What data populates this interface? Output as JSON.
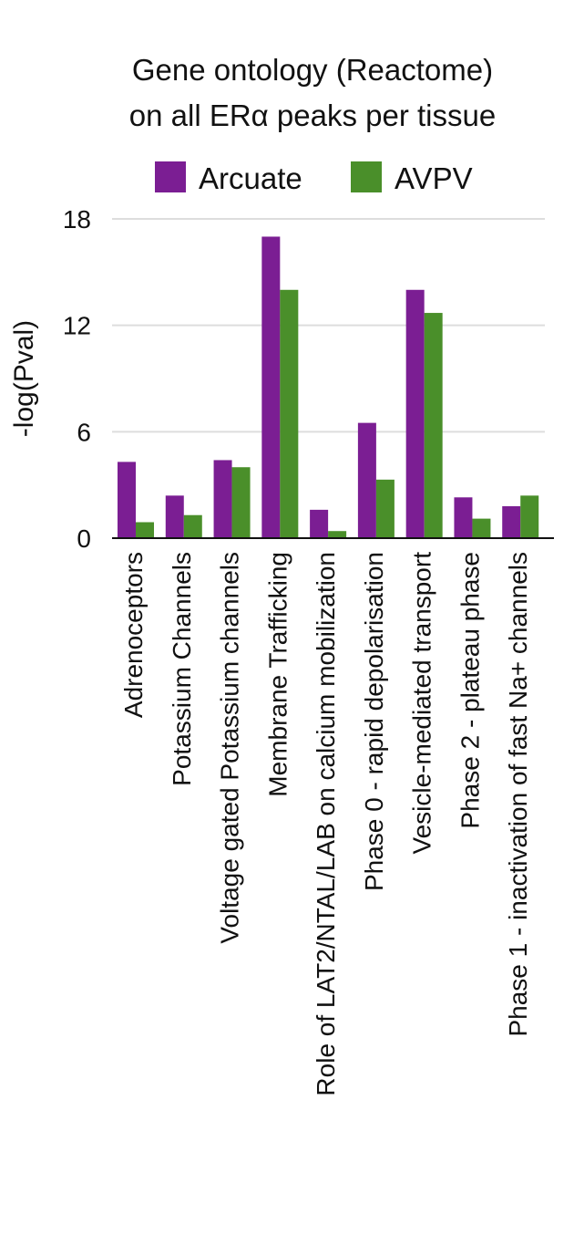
{
  "chart_data": {
    "type": "bar",
    "title_lines": [
      "Gene ontology (Reactome)",
      "on all ERα peaks per tissue"
    ],
    "xlabel": "",
    "ylabel": "-log(Pval)",
    "ylim": [
      0,
      18
    ],
    "yticks": [
      0,
      6,
      12,
      18
    ],
    "grid": true,
    "legend_position": "top",
    "categories": [
      "Adrenoceptors",
      "Potassium Channels",
      "Voltage gated Potassium channels",
      "Membrane Trafficking",
      "Role of LAT2/NTAL/LAB on calcium mobilization",
      "Phase 0 - rapid depolarisation",
      "Vesicle-mediated transport",
      "Phase 2 - plateau phase",
      "Phase 1 - inactivation of fast Na+ channels"
    ],
    "series": [
      {
        "name": "Arcuate",
        "color": "#7b1e93",
        "values": [
          4.3,
          2.4,
          4.4,
          17.0,
          1.6,
          6.5,
          14.0,
          2.3,
          1.8
        ]
      },
      {
        "name": "AVPV",
        "color": "#4a8f2a",
        "values": [
          0.9,
          1.3,
          4.0,
          14.0,
          0.4,
          3.3,
          12.7,
          1.1,
          2.4
        ]
      }
    ]
  }
}
